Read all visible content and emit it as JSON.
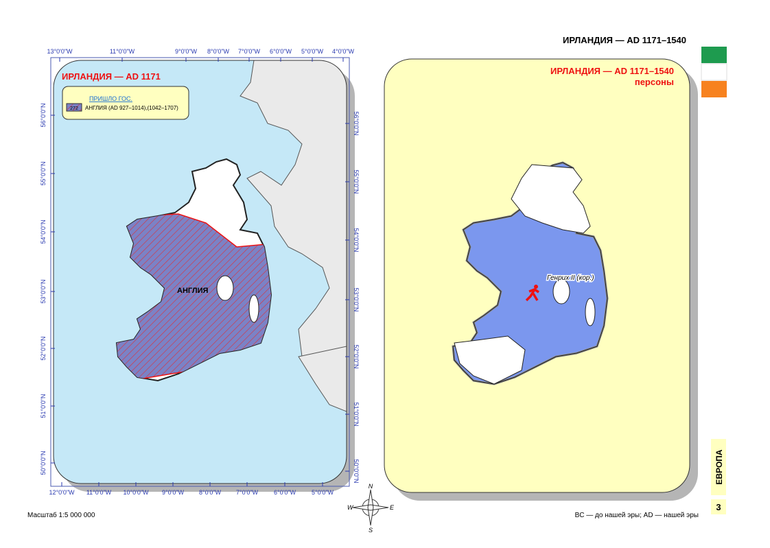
{
  "header": {
    "title": "ИРЛАНДИЯ — AD 1171–1540"
  },
  "left_map": {
    "title": "ИРЛАНДИЯ — AD 1171",
    "legend": {
      "heading": "ПРИШЛО ГОС.",
      "code": "272",
      "text": "АНГЛИЯ  (AD 927–1014),(1042–1707)"
    },
    "region_label": "АНГЛИЯ",
    "top_ticks": [
      "13°0'0\"W",
      "11°0'0\"W",
      "9°0'0\"W",
      "8°0'0\"W",
      "7°0'0\"W",
      "6°0'0\"W",
      "5°0'0\"W",
      "4°0'0\"W"
    ],
    "bottom_ticks": [
      "12°0'0\"W",
      "11°0'0\"W",
      "10°0'0\"W",
      "9°0'0\"W",
      "8°0'0\"W",
      "7°0'0\"W",
      "6°0'0\"W",
      "5°0'0\"W"
    ],
    "left_ticks": [
      "56°0'0\"N",
      "55°0'0\"N",
      "54°0'0\"N",
      "53°0'0\"N",
      "52°0'0\"N",
      "51°0'0\"N",
      "50°0'0\"N"
    ],
    "right_ticks": [
      "56°0'0\"N",
      "55°0'0\"N",
      "54°0'0\"N",
      "53°0'0\"N",
      "52°0'0\"N",
      "51°0'0\"N",
      "50°0'0\"N"
    ]
  },
  "right_map": {
    "title": "ИРЛАНДИЯ — AD 1171–1540",
    "subtitle": "персоны",
    "person": "Генрих II (кор.)"
  },
  "compass": {
    "n": "N",
    "w": "W",
    "e": "E",
    "s": "S"
  },
  "footer": {
    "scale": "Масштаб 1:5 000 000",
    "note": "BC — до нашей эры; AD — нашей эры"
  },
  "side": {
    "section": "ЕВРОПА",
    "page": "3"
  }
}
